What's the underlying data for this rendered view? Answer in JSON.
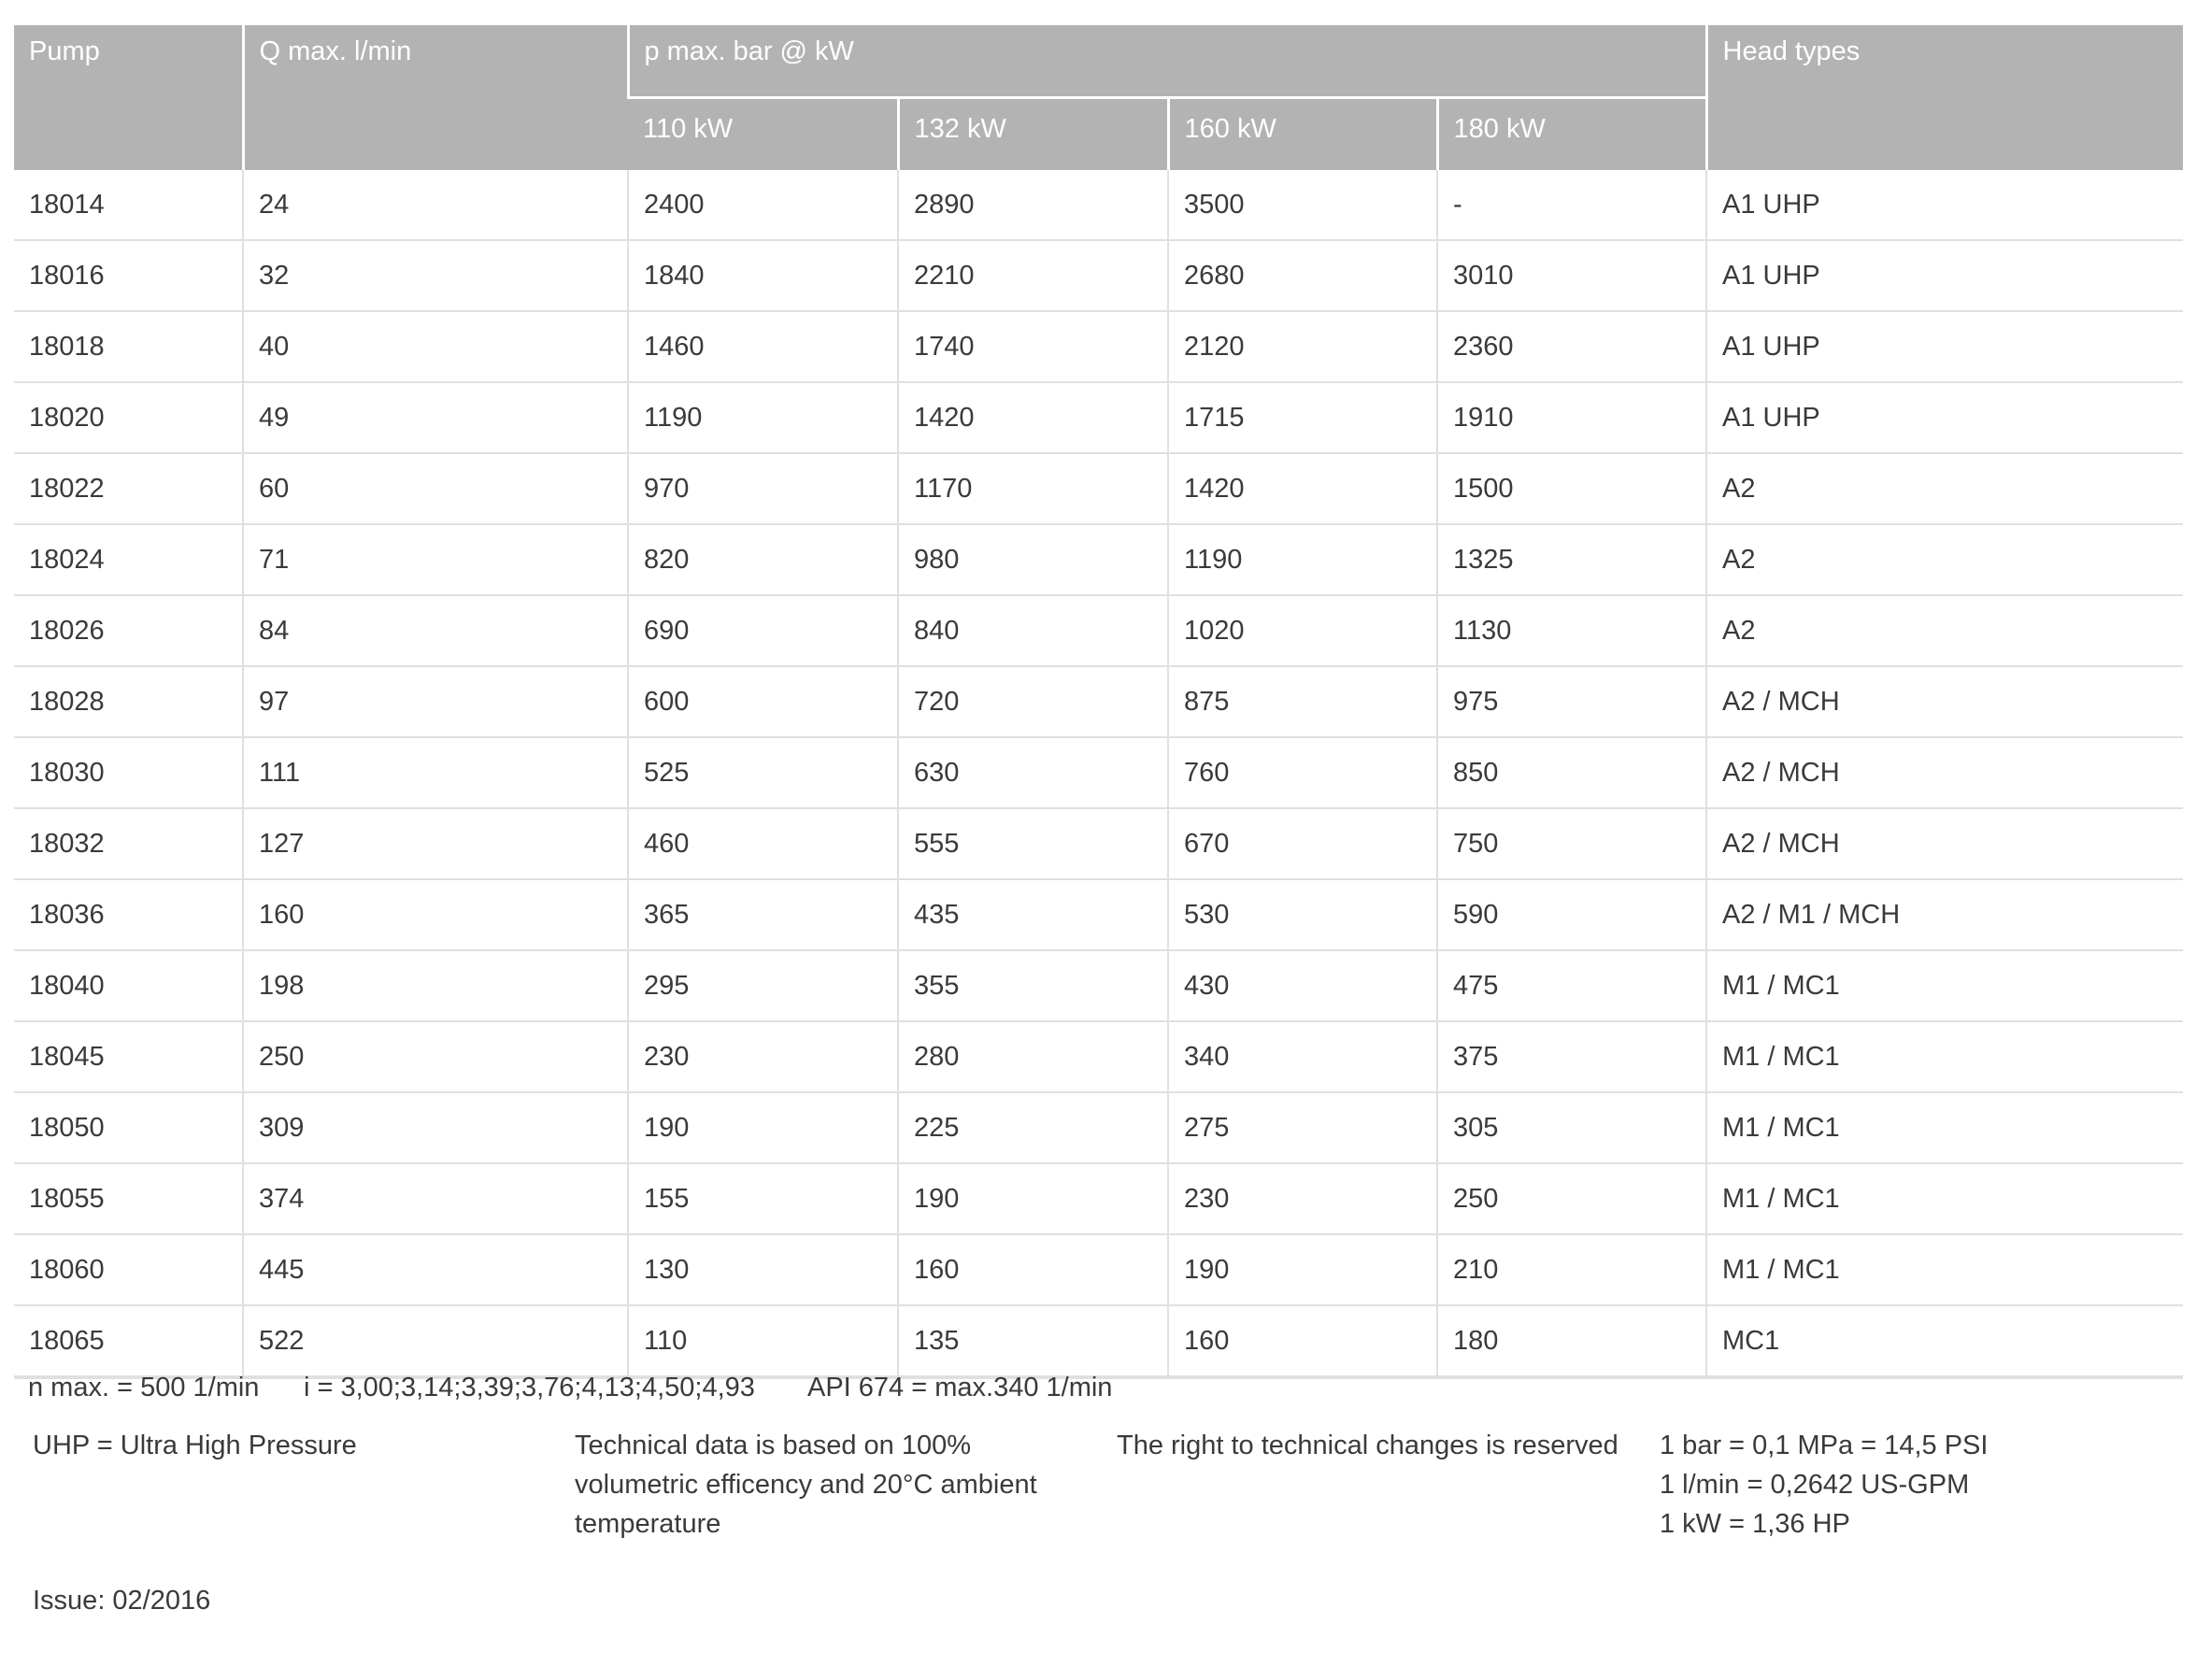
{
  "table": {
    "headers": {
      "pump": "Pump",
      "q_max": "Q max. l/min",
      "p_max": "p max. bar @ kW",
      "kw": [
        "110 kW",
        "132 kW",
        "160 kW",
        "180 kW"
      ],
      "head_types": "Head types"
    },
    "rows": [
      [
        "18014",
        "24",
        "2400",
        "2890",
        "3500",
        "-",
        "A1 UHP"
      ],
      [
        "18016",
        "32",
        "1840",
        "2210",
        "2680",
        "3010",
        "A1 UHP"
      ],
      [
        "18018",
        "40",
        "1460",
        "1740",
        "2120",
        "2360",
        "A1 UHP"
      ],
      [
        "18020",
        "49",
        "1190",
        "1420",
        "1715",
        "1910",
        "A1 UHP"
      ],
      [
        "18022",
        "60",
        "970",
        "1170",
        "1420",
        "1500",
        "A2"
      ],
      [
        "18024",
        "71",
        "820",
        "980",
        "1190",
        "1325",
        "A2"
      ],
      [
        "18026",
        "84",
        "690",
        "840",
        "1020",
        "1130",
        "A2"
      ],
      [
        "18028",
        "97",
        "600",
        "720",
        "875",
        "975",
        "A2 / MCH"
      ],
      [
        "18030",
        "111",
        "525",
        "630",
        "760",
        "850",
        "A2 / MCH"
      ],
      [
        "18032",
        "127",
        "460",
        "555",
        "670",
        "750",
        "A2 / MCH"
      ],
      [
        "18036",
        "160",
        "365",
        "435",
        "530",
        "590",
        "A2 / M1 / MCH"
      ],
      [
        "18040",
        "198",
        "295",
        "355",
        "430",
        "475",
        "M1 / MC1"
      ],
      [
        "18045",
        "250",
        "230",
        "280",
        "340",
        "375",
        "M1 / MC1"
      ],
      [
        "18050",
        "309",
        "190",
        "225",
        "275",
        "305",
        "M1 / MC1"
      ],
      [
        "18055",
        "374",
        "155",
        "190",
        "230",
        "250",
        "M1 / MC1"
      ],
      [
        "18060",
        "445",
        "130",
        "160",
        "190",
        "210",
        "M1 / MC1"
      ],
      [
        "18065",
        "522",
        "110",
        "135",
        "160",
        "180",
        "MC1"
      ]
    ]
  },
  "notes": {
    "n_max": "n max. = 500 1/min",
    "ratios": "i = 3,00;3,14;3,39;3,76;4,13;4,50;4,93",
    "api": "API 674 = max.340 1/min",
    "uhp": "UHP = Ultra High Pressure",
    "technical": [
      "Technical data is based on 100%",
      "volumetric efficency and 20°C ambient",
      "temperature"
    ],
    "reserved": "The right to technical changes is reserved",
    "conversions": [
      "1 bar = 0,1 MPa = 14,5 PSI",
      "1 l/min = 0,2642 US-GPM",
      "1 kW = 1,36 HP"
    ],
    "issue": "Issue: 02/2016"
  },
  "colors": {
    "header_bg": "#b3b3b3",
    "grid": "#e0e0e0"
  }
}
